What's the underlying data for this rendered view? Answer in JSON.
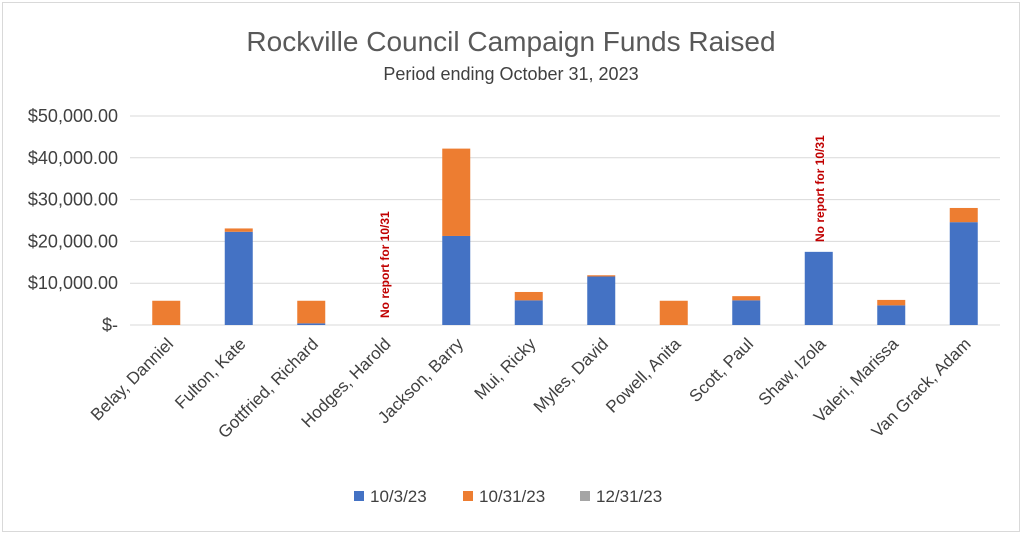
{
  "chart_data": {
    "type": "bar",
    "stacked": true,
    "title": "Rockville Council Campaign Funds Raised",
    "subtitle": "Period ending October 31, 2023",
    "xlabel": "",
    "ylabel": "",
    "ylim": [
      0,
      50000
    ],
    "y_ticks": [
      "$50,000.00",
      "$40,000.00",
      "$30,000.00",
      "$20,000.00",
      "$10,000.00",
      "$-"
    ],
    "y_tick_values": [
      50000,
      40000,
      30000,
      20000,
      10000,
      0
    ],
    "grid": true,
    "legend_position": "bottom",
    "categories": [
      "Belay, Danniel",
      "Fulton, Kate",
      "Gottfried, Richard",
      "Hodges, Harold",
      "Jackson, Barry",
      "Mui, Ricky",
      "Myles, David",
      "Powell, Anita",
      "Scott, Paul",
      "Shaw, Izola",
      "Valeri, Marissa",
      "Van Grack, Adam"
    ],
    "series": [
      {
        "name": "10/3/23",
        "color": "#4472c4",
        "values": [
          0,
          22300,
          400,
          0,
          21300,
          5900,
          11600,
          0,
          5900,
          17500,
          4700,
          24600
        ]
      },
      {
        "name": "10/31/23",
        "color": "#ed7d31",
        "values": [
          5800,
          800,
          5400,
          0,
          20900,
          2000,
          300,
          5800,
          1000,
          0,
          1300,
          3400
        ]
      },
      {
        "name": "12/31/23",
        "color": "#a5a5a5",
        "values": [
          0,
          0,
          0,
          0,
          0,
          0,
          0,
          0,
          0,
          0,
          0,
          0
        ]
      }
    ],
    "annotations": [
      {
        "category": "Hodges, Harold",
        "text": "No report for 10/31"
      },
      {
        "category": "Shaw, Izola",
        "text": "No report for 10/31"
      }
    ]
  }
}
